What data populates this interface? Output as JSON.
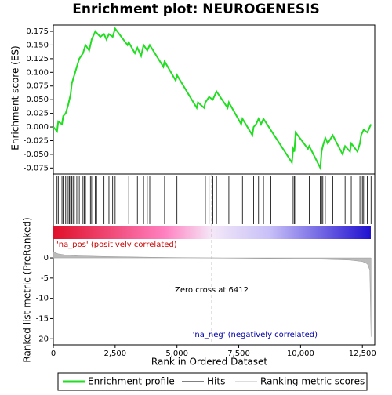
{
  "chart_data": [
    {
      "type": "line",
      "title": "Enrichment plot: NEUROGENESIS",
      "ylabel": "Enrichment score (ES)",
      "color": "#22dd22",
      "xlim": [
        0,
        13000
      ],
      "ylim": [
        -0.086,
        0.1865
      ],
      "yticks": [
        {
          "value": 0.175,
          "label": "0.175"
        },
        {
          "value": 0.15,
          "label": "0.150"
        },
        {
          "value": 0.125,
          "label": "0.125"
        },
        {
          "value": 0.1,
          "label": "0.100"
        },
        {
          "value": 0.075,
          "label": "0.075"
        },
        {
          "value": 0.05,
          "label": "0.050"
        },
        {
          "value": 0.025,
          "label": "0.025"
        },
        {
          "value": 0,
          "label": "0.000"
        },
        {
          "value": -0.025,
          "label": "-0.025"
        },
        {
          "value": -0.05,
          "label": "-0.050"
        },
        {
          "value": -0.075,
          "label": "-0.075"
        }
      ],
      "x": [
        0,
        150,
        200,
        350,
        400,
        500,
        600,
        700,
        750,
        850,
        950,
        1050,
        1200,
        1300,
        1450,
        1550,
        1700,
        1900,
        2050,
        2150,
        2250,
        2400,
        2500,
        3000,
        3050,
        3300,
        3400,
        3550,
        3650,
        3800,
        3900,
        4450,
        4500,
        4950,
        5000,
        5800,
        5850,
        6100,
        6150,
        6300,
        6450,
        6600,
        7050,
        7100,
        7600,
        7650,
        8050,
        8100,
        8200,
        8300,
        8400,
        8500,
        9650,
        9700,
        9750,
        9800,
        10300,
        10350,
        10800,
        10850,
        10900,
        11000,
        11100,
        11300,
        11700,
        11800,
        12000,
        12050,
        12300,
        12400,
        12450,
        12550,
        12700,
        12850
      ],
      "values": [
        0,
        -0.008,
        0.01,
        0.005,
        0.02,
        0.025,
        0.04,
        0.06,
        0.08,
        0.095,
        0.11,
        0.125,
        0.135,
        0.15,
        0.14,
        0.16,
        0.175,
        0.165,
        0.17,
        0.16,
        0.17,
        0.165,
        0.18,
        0.15,
        0.155,
        0.135,
        0.145,
        0.13,
        0.15,
        0.14,
        0.15,
        0.11,
        0.12,
        0.085,
        0.095,
        0.035,
        0.045,
        0.035,
        0.045,
        0.055,
        0.05,
        0.065,
        0.035,
        0.045,
        0.005,
        0.015,
        -0.015,
        0,
        0.005,
        0.015,
        0.005,
        0.015,
        -0.065,
        -0.04,
        -0.045,
        -0.01,
        -0.04,
        -0.035,
        -0.075,
        -0.045,
        -0.035,
        -0.02,
        -0.03,
        -0.015,
        -0.05,
        -0.035,
        -0.045,
        -0.03,
        -0.045,
        -0.03,
        -0.015,
        -0.005,
        -0.01,
        0.005
      ]
    },
    {
      "type": "rug",
      "xlim": [
        0,
        13000
      ],
      "color": "#000000",
      "x": [
        150,
        200,
        350,
        400,
        500,
        550,
        600,
        650,
        700,
        720,
        750,
        800,
        850,
        950,
        1050,
        1200,
        1250,
        1300,
        1500,
        1550,
        1700,
        1750,
        2050,
        2250,
        2400,
        2500,
        3050,
        3400,
        3650,
        3800,
        3900,
        4500,
        5000,
        5850,
        6150,
        6300,
        6450,
        6600,
        7100,
        7650,
        8100,
        8200,
        8300,
        8500,
        8800,
        9700,
        9750,
        9800,
        10350,
        10800,
        10820,
        10850,
        10900,
        11000,
        11300,
        11800,
        12050,
        12400,
        12450,
        12500,
        12550,
        12700,
        12850
      ]
    },
    {
      "type": "area",
      "ylabel": "Ranked list metric (PreRanked)",
      "xlabel": "Rank in Ordered Dataset",
      "color": "#bbbbbb",
      "xlim": [
        0,
        13000
      ],
      "ylim": [
        -21.5,
        4.66
      ],
      "yticks": [
        0,
        -5,
        -10,
        -15,
        -20
      ],
      "xticks": [
        {
          "value": 0,
          "label": "0"
        },
        {
          "value": 2500,
          "label": "2,500"
        },
        {
          "value": 5000,
          "label": "5,000"
        },
        {
          "value": 7500,
          "label": "7,500"
        },
        {
          "value": 10000,
          "label": "10,000"
        },
        {
          "value": 12500,
          "label": "12,500"
        }
      ],
      "x": [
        0,
        200,
        500,
        1000,
        2000,
        3000,
        4000,
        5000,
        6000,
        6412,
        7000,
        8000,
        9000,
        10000,
        11000,
        12000,
        12500,
        12700,
        12800,
        12850
      ],
      "values": [
        1.5,
        1.0,
        0.7,
        0.5,
        0.35,
        0.25,
        0.15,
        0.08,
        0.02,
        0,
        -0.05,
        -0.1,
        -0.15,
        -0.25,
        -0.35,
        -0.55,
        -0.9,
        -1.5,
        -3,
        -19.5
      ],
      "zero_cross": 6412,
      "annotations": [
        "'na_pos' (positively correlated)",
        "Zero cross at 6412",
        "'na_neg' (negatively correlated)"
      ]
    }
  ],
  "legend": [
    "Enrichment profile",
    "Hits",
    "Ranking metric scores"
  ]
}
